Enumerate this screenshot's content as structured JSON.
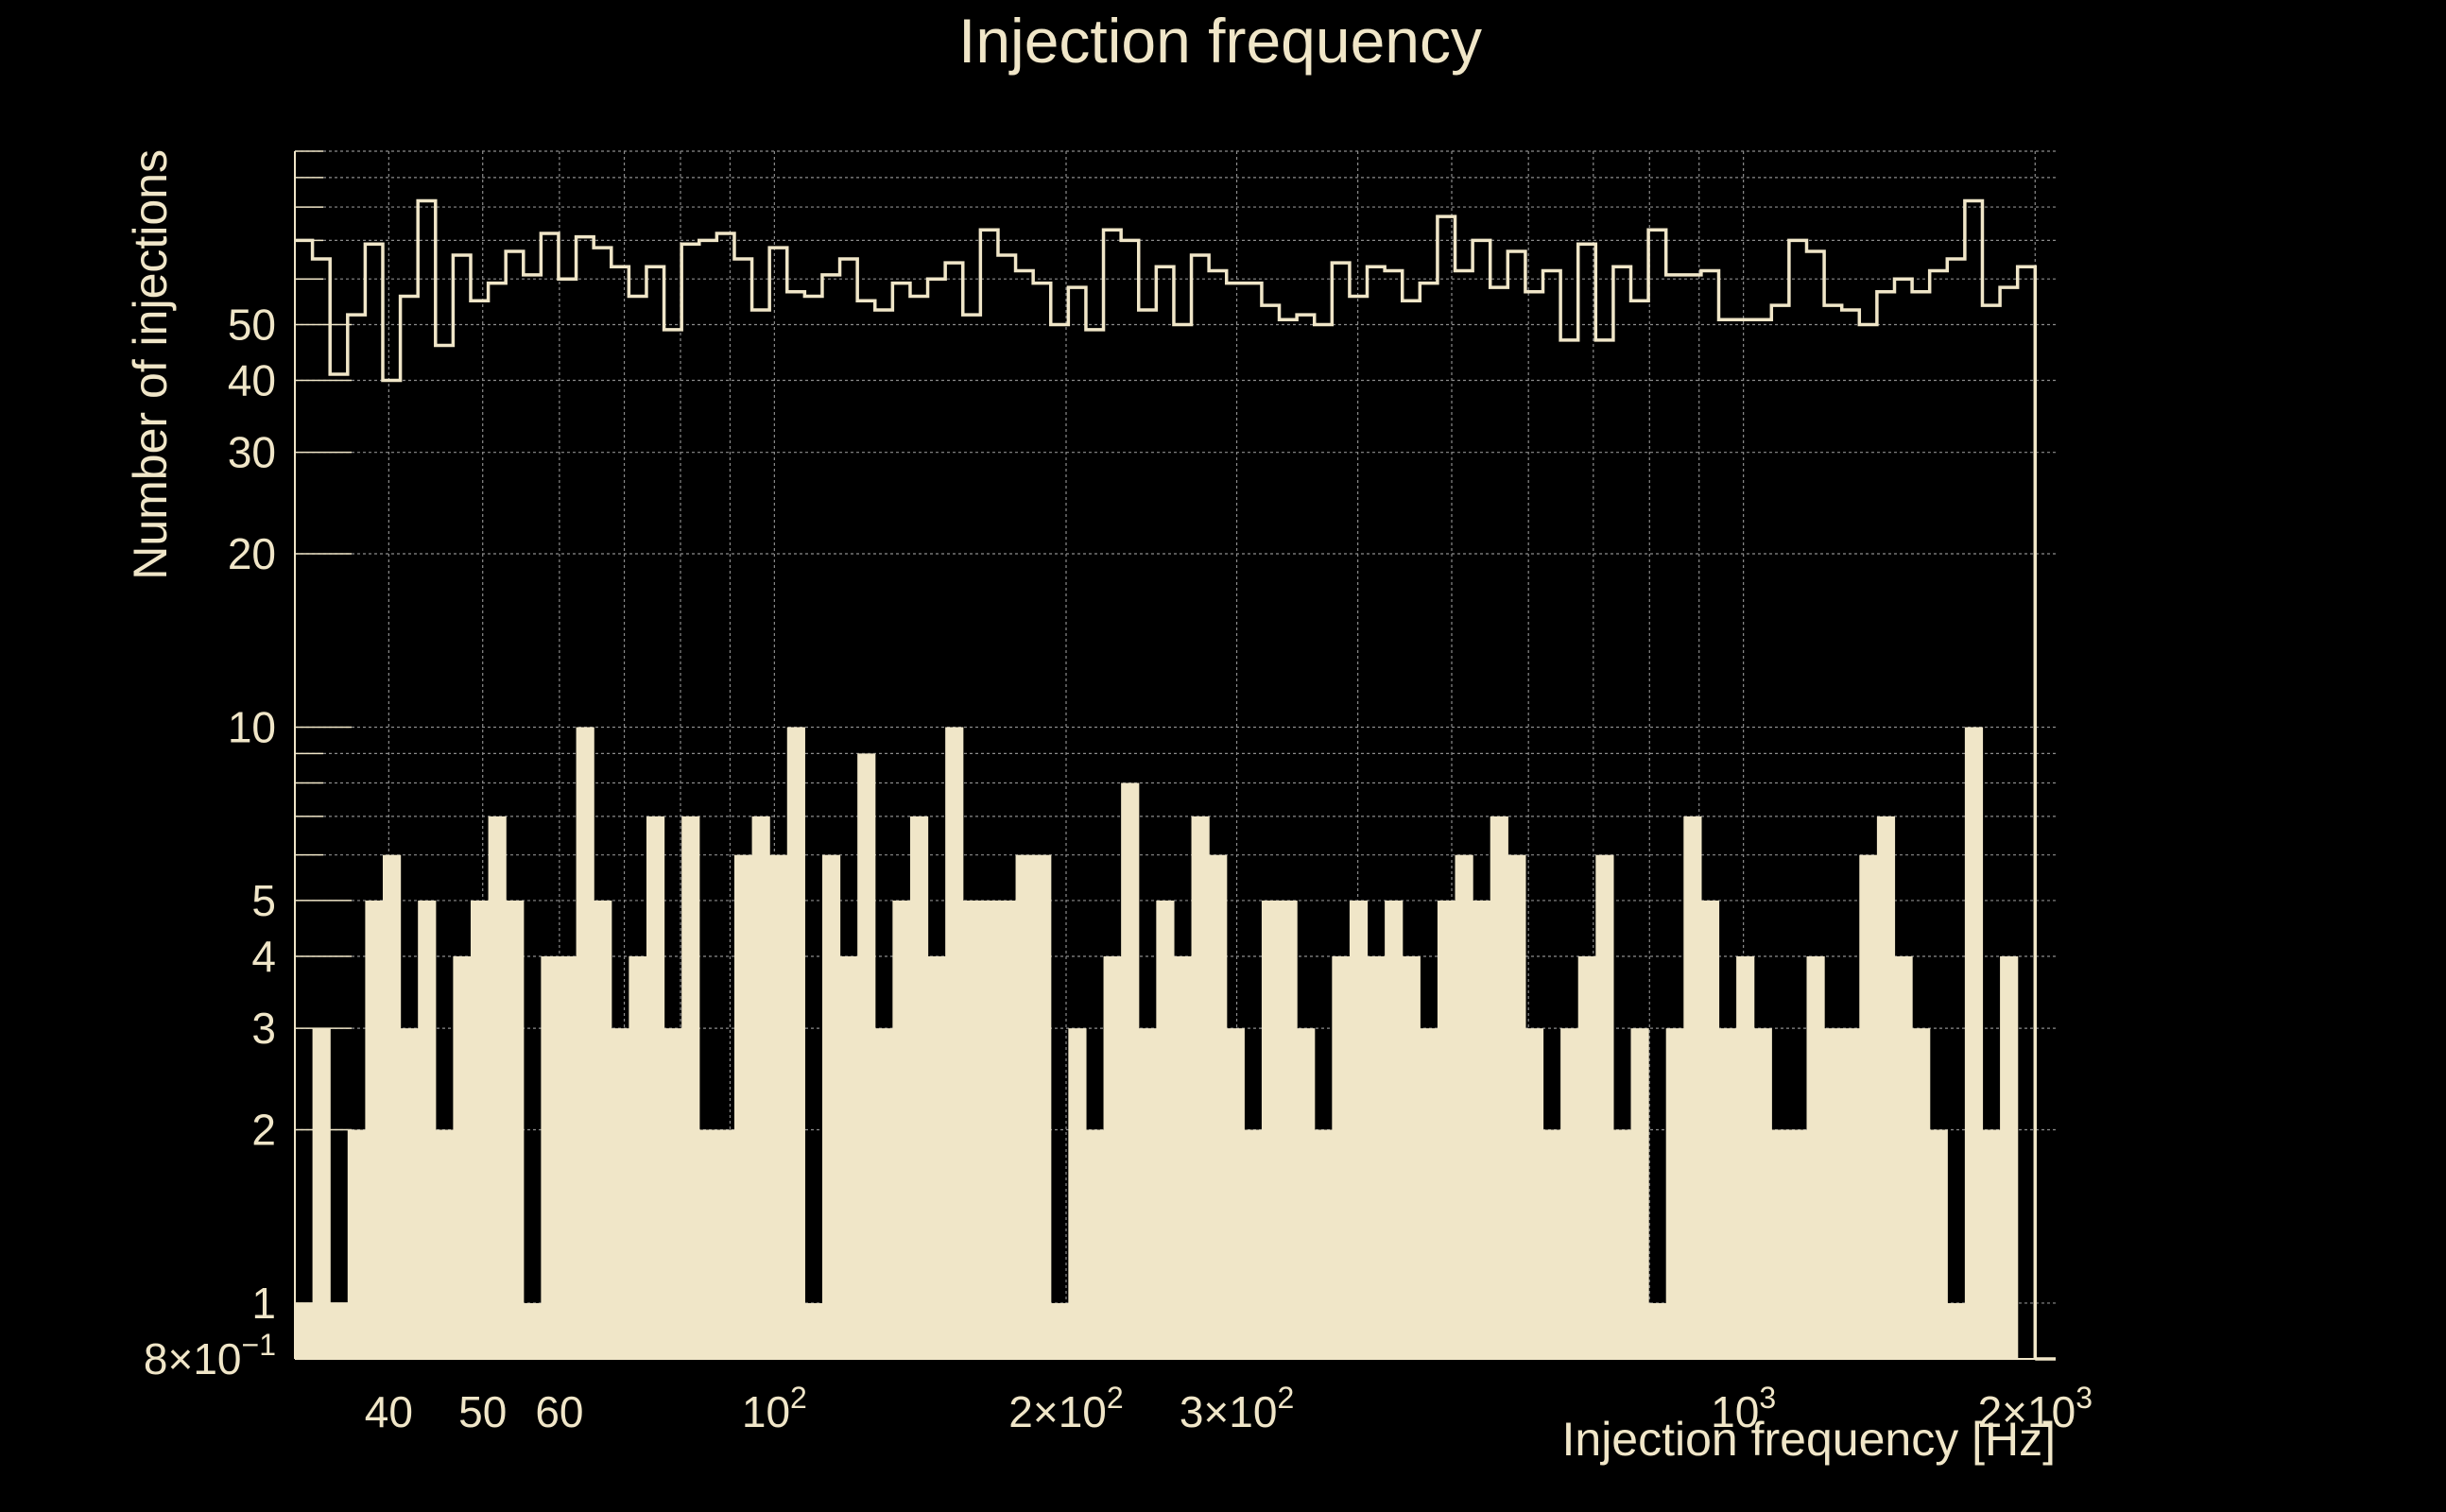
{
  "colors": {
    "background": "#000000",
    "foreground": "#f0e6c8",
    "grid": "#8c8c8c"
  },
  "chart_data": {
    "type": "bar",
    "title": "Injection frequency",
    "xlabel": "Injection frequency [Hz]",
    "ylabel": "Number of injections",
    "xscale": "log",
    "yscale": "log",
    "xlim": [
      32,
      2100
    ],
    "ylim": [
      0.8,
      100
    ],
    "grid": true,
    "x_ticks": [
      {
        "value": 40,
        "label": "40"
      },
      {
        "value": 50,
        "label": "50"
      },
      {
        "value": 60,
        "label": "60"
      },
      {
        "value": 100,
        "label": "10",
        "exp": "2"
      },
      {
        "value": 200,
        "label": "2×10",
        "exp": "2"
      },
      {
        "value": 300,
        "label": "3×10",
        "exp": "2"
      },
      {
        "value": 1000,
        "label": "10",
        "exp": "3"
      },
      {
        "value": 2000,
        "label": "2×10",
        "exp": "3"
      }
    ],
    "y_ticks": [
      {
        "value": 0.8,
        "label": "8×10",
        "exp": "−1"
      },
      {
        "value": 1,
        "label": "1"
      },
      {
        "value": 2,
        "label": "2"
      },
      {
        "value": 3,
        "label": "3"
      },
      {
        "value": 4,
        "label": "4"
      },
      {
        "value": 5,
        "label": "5"
      },
      {
        "value": 10,
        "label": "10"
      },
      {
        "value": 20,
        "label": "20"
      },
      {
        "value": 30,
        "label": "30"
      },
      {
        "value": 40,
        "label": "40"
      },
      {
        "value": 50,
        "label": "50"
      }
    ],
    "bins": {
      "first_edge": 32,
      "last_edge": 2000,
      "count": 99
    },
    "series": [
      {
        "name": "filled histogram",
        "style": "filled",
        "values": [
          1,
          3,
          1,
          2,
          5,
          6,
          3,
          5,
          2,
          4,
          5,
          7,
          5,
          1,
          4,
          4,
          10,
          5,
          3,
          4,
          7,
          3,
          7,
          2,
          2,
          6,
          7,
          6,
          10,
          1,
          6,
          4,
          9,
          3,
          5,
          7,
          4,
          10,
          5,
          5,
          5,
          6,
          6,
          1,
          3,
          2,
          4,
          8,
          3,
          5,
          4,
          7,
          6,
          3,
          2,
          5,
          5,
          3,
          2,
          4,
          5,
          4,
          5,
          4,
          3,
          5,
          6,
          5,
          7,
          6,
          3,
          2,
          3,
          4,
          6,
          2,
          3,
          1,
          3,
          7,
          5,
          3,
          4,
          3,
          2,
          2,
          4,
          3,
          3,
          6,
          7,
          4,
          3,
          2,
          1,
          10,
          2,
          4,
          0.8
        ]
      },
      {
        "name": "outline histogram",
        "style": "step",
        "values": [
          70,
          65,
          41,
          52,
          69,
          40,
          56,
          82,
          46,
          66,
          55,
          59,
          67,
          61,
          72,
          60,
          71,
          68,
          63,
          56,
          63,
          49,
          69,
          70,
          72,
          65,
          53,
          68,
          57,
          56,
          61,
          65,
          55,
          53,
          59,
          56,
          60,
          64,
          52,
          73,
          66,
          62,
          59,
          50,
          58,
          49,
          73,
          70,
          53,
          63,
          50,
          66,
          62,
          59,
          59,
          54,
          51,
          52,
          50,
          64,
          56,
          63,
          62,
          55,
          59,
          77,
          62,
          70,
          58,
          67,
          57,
          62,
          47,
          69,
          47,
          63,
          55,
          73,
          61,
          61,
          62,
          51,
          51,
          51,
          54,
          70,
          67,
          54,
          53,
          50,
          57,
          60,
          57,
          62,
          65,
          82,
          54,
          58,
          63
        ]
      }
    ]
  }
}
